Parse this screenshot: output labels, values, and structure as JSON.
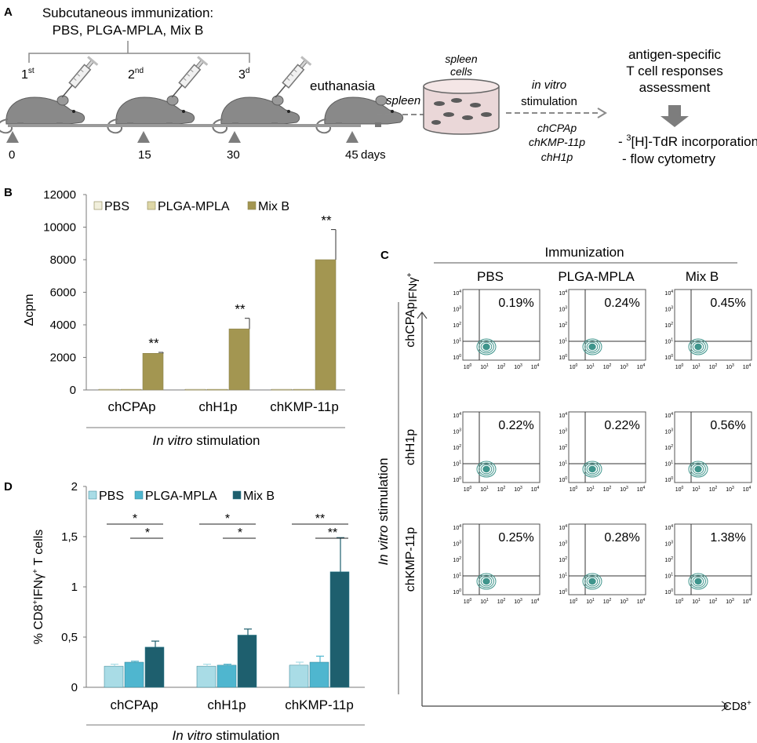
{
  "colors": {
    "pbsB": "#f1efdc",
    "plgaB": "#ddd6a6",
    "mixB": "#a39651",
    "pbsD": "#a9dce6",
    "plgaD": "#4fb6cf",
    "mixD": "#1e5f6e",
    "contour": "#3f958c",
    "mouse": "#898989",
    "arrow": "#7d7d7d"
  },
  "panelA": {
    "letter": "A",
    "immunization_title": "Subcutaneous immunization:",
    "immunization_groups": "PBS, PLGA-MPLA, Mix B",
    "dose1": "1",
    "dose1_sup": "st",
    "dose2": "2",
    "dose2_sup": "nd",
    "dose3": "3",
    "dose3_sup": "d",
    "euthanasia": "euthanasia",
    "spleen_arrow": "spleen",
    "spleen_cells_1": "spleen",
    "spleen_cells_2": "cells",
    "in_vitro": "in vitro",
    "stimulation": "stimulation",
    "peptides": [
      "chCPAp",
      "chKMP-11p",
      "chH1p"
    ],
    "days": [
      "0",
      "15",
      "30",
      "45"
    ],
    "days_unit": "days",
    "assessment": [
      "antigen-specific",
      "T cell responses",
      "assessment"
    ],
    "method1_pre": "- ",
    "method1_sup": "3",
    "method1_rest": "[H]-TdR incorporation",
    "method2": "- flow cytometry"
  },
  "panelB": {
    "letter": "B",
    "chart_data": {
      "type": "bar",
      "ylabel": "Δcpm",
      "ylim": [
        0,
        12000
      ],
      "yticks": [
        "0",
        "2000",
        "4000",
        "6000",
        "8000",
        "10000",
        "12000"
      ],
      "categories": [
        "chCPAp",
        "chH1p",
        "chKMP-11p"
      ],
      "xlabel_italic": "In vitro",
      "xlabel_rest": " stimulation",
      "legend": [
        "PBS",
        "PLGA-MPLA",
        "Mix B"
      ],
      "series": [
        {
          "name": "PBS",
          "values": [
            40,
            40,
            40
          ],
          "errors": [
            0,
            0,
            0
          ]
        },
        {
          "name": "PLGA-MPLA",
          "values": [
            40,
            40,
            40
          ],
          "errors": [
            0,
            0,
            0
          ]
        },
        {
          "name": "Mix B",
          "values": [
            2250,
            3750,
            8000
          ],
          "errors": [
            60,
            650,
            1850
          ]
        }
      ],
      "significance": [
        "**",
        "**",
        "**"
      ]
    }
  },
  "panelC": {
    "letter": "C",
    "immunization": "Immunization",
    "columns": [
      "PBS",
      "PLGA-MPLA",
      "Mix B"
    ],
    "rows": [
      "chCPAp",
      "chH1p",
      "chKMP-11p"
    ],
    "y_marker": "IFNγ",
    "y_marker_sup": "+",
    "x_marker": "CD8",
    "x_marker_sup": "+",
    "side_italic": "In vitro",
    "side_rest": " stimulation",
    "percent": [
      [
        "0.19%",
        "0.24%",
        "0.45%"
      ],
      [
        "0.22%",
        "0.22%",
        "0.56%"
      ],
      [
        "0.25%",
        "0.28%",
        "1.38%"
      ]
    ],
    "tick_base": "10",
    "tick_exps": [
      "0",
      "1",
      "2",
      "3",
      "4"
    ]
  },
  "panelD": {
    "letter": "D",
    "chart_data": {
      "type": "bar",
      "ylabel_pre": "% CD8",
      "ylabel_sup1": "+",
      "ylabel_mid": "IFNγ",
      "ylabel_sup2": "+",
      "ylabel_post": " T cells",
      "ylim": [
        0,
        2
      ],
      "yticks": [
        "0",
        "0,5",
        "1",
        "1,5",
        "2"
      ],
      "categories": [
        "chCPAp",
        "chH1p",
        "chKMP-11p"
      ],
      "xlabel_italic": "In vitro",
      "xlabel_rest": " stimulation",
      "legend": [
        "PBS",
        "PLGA-MPLA",
        "Mix B"
      ],
      "series": [
        {
          "name": "PBS",
          "values": [
            0.21,
            0.21,
            0.22
          ],
          "errors": [
            0.02,
            0.02,
            0.03
          ]
        },
        {
          "name": "PLGA-MPLA",
          "values": [
            0.25,
            0.22,
            0.25
          ],
          "errors": [
            0.01,
            0.01,
            0.06
          ]
        },
        {
          "name": "Mix B",
          "values": [
            0.4,
            0.52,
            1.15
          ],
          "errors": [
            0.06,
            0.06,
            0.34
          ]
        }
      ],
      "significance": [
        [
          "*",
          "*"
        ],
        [
          "*",
          "*"
        ],
        [
          "**",
          "**"
        ]
      ]
    }
  }
}
